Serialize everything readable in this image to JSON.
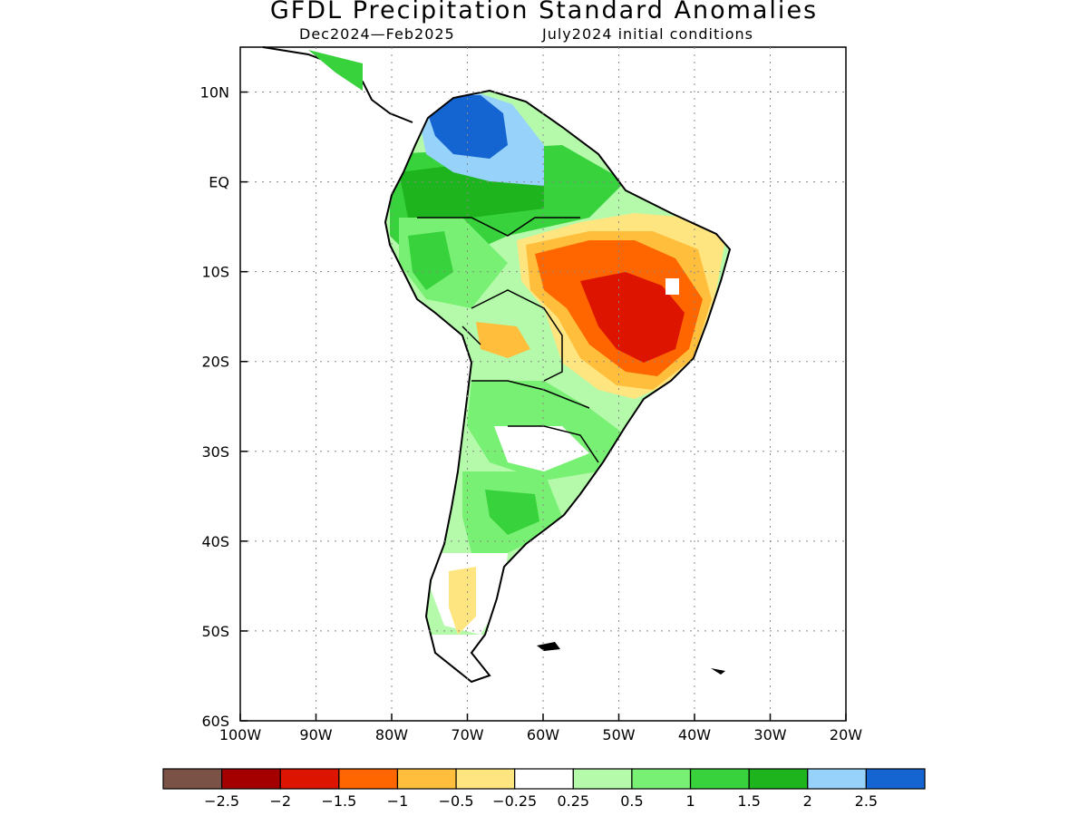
{
  "title": "GFDL Precipitation Standard Anomalies",
  "subtitle_left": "Dec2024—Feb2025",
  "subtitle_right": "July2024 initial conditions",
  "map": {
    "region": "South America",
    "lon_range": [
      -100,
      -20
    ],
    "lat_range": [
      -60,
      15
    ],
    "lon_tick_labels": [
      "100W",
      "90W",
      "80W",
      "70W",
      "60W",
      "50W",
      "40W",
      "30W",
      "20W"
    ],
    "lat_tick_labels": [
      "10N",
      "EQ",
      "10S",
      "20S",
      "30S",
      "40S",
      "50S",
      "60S"
    ],
    "grid": "dotted"
  },
  "colorbar": {
    "colors": [
      "#7b5246",
      "#a50000",
      "#dd1400",
      "#ff6600",
      "#ffbf3c",
      "#ffe580",
      "#ffffff",
      "#b4faaa",
      "#78f073",
      "#37d23c",
      "#1eb41e",
      "#96d2fa",
      "#1464d2"
    ],
    "labels": [
      "−2.5",
      "−2",
      "−1.5",
      "−1",
      "−0.5",
      "−0.25",
      "0.25",
      "0.5",
      "1",
      "1.5",
      "2",
      "2.5"
    ]
  }
}
